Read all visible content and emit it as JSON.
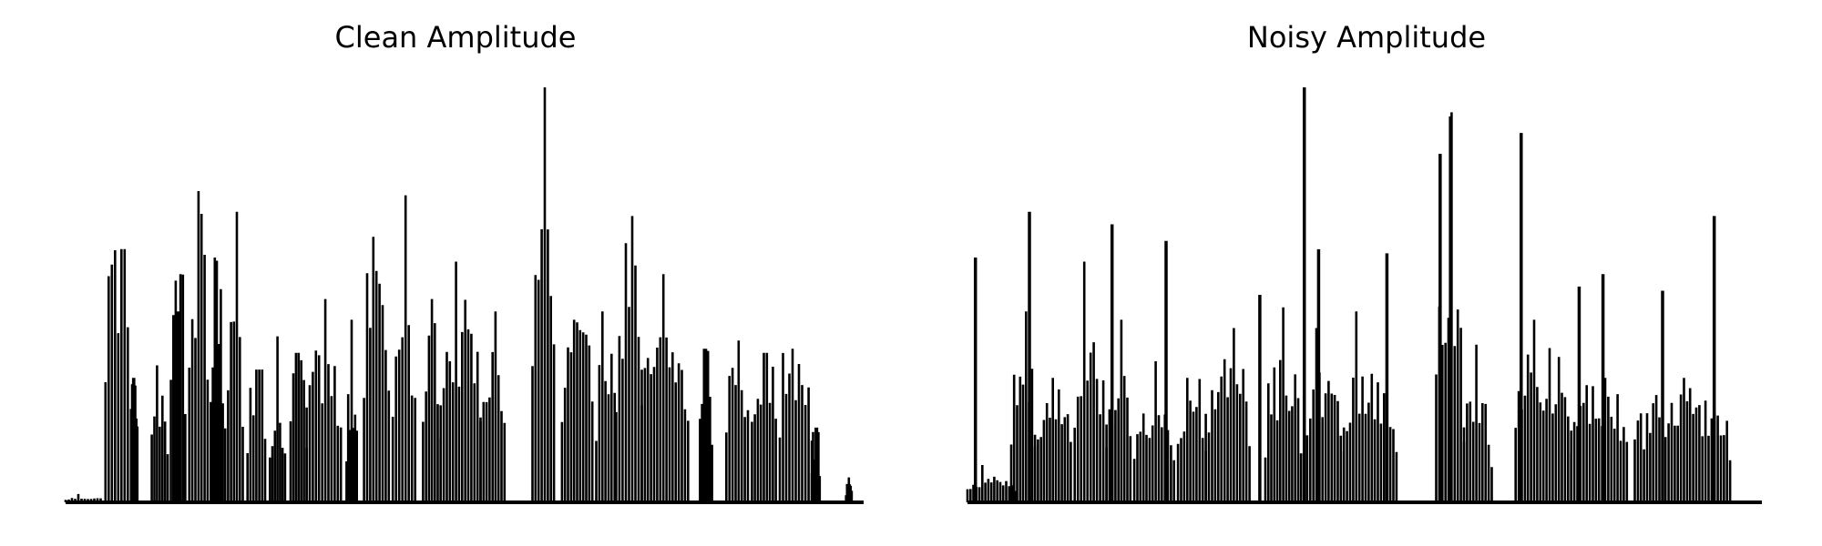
{
  "chart_data": [
    {
      "type": "line",
      "title": "Clean Amplitude",
      "xlabel": "",
      "ylabel": "",
      "axes": "off",
      "grid": false,
      "color": "#000000",
      "ylim": [
        0,
        1.0
      ],
      "segments": [
        {
          "start": 0.0,
          "end": 0.048,
          "level": 0.01,
          "peak": 0.02
        },
        {
          "start": 0.05,
          "end": 0.082,
          "level": 0.55,
          "peak": 0.61
        },
        {
          "start": 0.082,
          "end": 0.09,
          "level": 0.28,
          "peak": 0.3
        },
        {
          "start": 0.108,
          "end": 0.128,
          "level": 0.24,
          "peak": 0.33
        },
        {
          "start": 0.132,
          "end": 0.15,
          "level": 0.5,
          "peak": 0.55
        },
        {
          "start": 0.155,
          "end": 0.178,
          "level": 0.55,
          "peak": 0.75
        },
        {
          "start": 0.182,
          "end": 0.197,
          "level": 0.45,
          "peak": 0.59
        },
        {
          "start": 0.2,
          "end": 0.222,
          "level": 0.42,
          "peak": 0.7
        },
        {
          "start": 0.228,
          "end": 0.25,
          "level": 0.3,
          "peak": 0.32
        },
        {
          "start": 0.256,
          "end": 0.275,
          "level": 0.2,
          "peak": 0.4
        },
        {
          "start": 0.282,
          "end": 0.302,
          "level": 0.32,
          "peak": 0.36
        },
        {
          "start": 0.302,
          "end": 0.345,
          "level": 0.32,
          "peak": 0.49
        },
        {
          "start": 0.352,
          "end": 0.365,
          "level": 0.25,
          "peak": 0.44
        },
        {
          "start": 0.374,
          "end": 0.405,
          "level": 0.5,
          "peak": 0.64
        },
        {
          "start": 0.41,
          "end": 0.438,
          "level": 0.36,
          "peak": 0.74
        },
        {
          "start": 0.448,
          "end": 0.47,
          "level": 0.35,
          "peak": 0.49
        },
        {
          "start": 0.47,
          "end": 0.52,
          "level": 0.38,
          "peak": 0.58
        },
        {
          "start": 0.52,
          "end": 0.55,
          "level": 0.3,
          "peak": 0.46
        },
        {
          "start": 0.585,
          "end": 0.612,
          "level": 0.6,
          "peak": 1.0
        },
        {
          "start": 0.622,
          "end": 0.66,
          "level": 0.35,
          "peak": 0.44
        },
        {
          "start": 0.665,
          "end": 0.688,
          "level": 0.38,
          "peak": 0.46
        },
        {
          "start": 0.69,
          "end": 0.722,
          "level": 0.5,
          "peak": 0.69
        },
        {
          "start": 0.722,
          "end": 0.78,
          "level": 0.34,
          "peak": 0.55
        },
        {
          "start": 0.795,
          "end": 0.81,
          "level": 0.32,
          "peak": 0.37
        },
        {
          "start": 0.828,
          "end": 0.855,
          "level": 0.32,
          "peak": 0.39
        },
        {
          "start": 0.86,
          "end": 0.89,
          "level": 0.32,
          "peak": 0.36
        },
        {
          "start": 0.895,
          "end": 0.935,
          "level": 0.35,
          "peak": 0.37
        },
        {
          "start": 0.935,
          "end": 0.945,
          "level": 0.15,
          "peak": 0.18
        },
        {
          "start": 0.978,
          "end": 0.985,
          "level": 0.04,
          "peak": 0.06
        }
      ]
    },
    {
      "type": "line",
      "title": "Noisy Amplitude",
      "xlabel": "",
      "ylabel": "",
      "axes": "off",
      "grid": false,
      "color": "#000000",
      "ylim": [
        0,
        1.0
      ],
      "segments": [
        {
          "start": 0.0,
          "end": 0.06,
          "level": 0.05,
          "peak": 0.09
        },
        {
          "start": 0.055,
          "end": 0.085,
          "level": 0.3,
          "peak": 0.46
        },
        {
          "start": 0.085,
          "end": 0.13,
          "level": 0.22,
          "peak": 0.3
        },
        {
          "start": 0.135,
          "end": 0.175,
          "level": 0.3,
          "peak": 0.58
        },
        {
          "start": 0.175,
          "end": 0.205,
          "level": 0.28,
          "peak": 0.44
        },
        {
          "start": 0.21,
          "end": 0.26,
          "level": 0.22,
          "peak": 0.34
        },
        {
          "start": 0.265,
          "end": 0.3,
          "level": 0.25,
          "peak": 0.3
        },
        {
          "start": 0.3,
          "end": 0.355,
          "level": 0.3,
          "peak": 0.42
        },
        {
          "start": 0.375,
          "end": 0.42,
          "level": 0.28,
          "peak": 0.47
        },
        {
          "start": 0.42,
          "end": 0.47,
          "level": 0.25,
          "peak": 0.42
        },
        {
          "start": 0.47,
          "end": 0.54,
          "level": 0.25,
          "peak": 0.46
        },
        {
          "start": 0.59,
          "end": 0.625,
          "level": 0.45,
          "peak": 0.94
        },
        {
          "start": 0.625,
          "end": 0.66,
          "level": 0.22,
          "peak": 0.38
        },
        {
          "start": 0.69,
          "end": 0.76,
          "level": 0.3,
          "peak": 0.44
        },
        {
          "start": 0.76,
          "end": 0.83,
          "level": 0.25,
          "peak": 0.3
        },
        {
          "start": 0.84,
          "end": 0.96,
          "level": 0.22,
          "peak": 0.3
        }
      ],
      "spikes": [
        {
          "x": 0.01,
          "value": 0.59
        },
        {
          "x": 0.078,
          "value": 0.7
        },
        {
          "x": 0.182,
          "value": 0.67
        },
        {
          "x": 0.25,
          "value": 0.63
        },
        {
          "x": 0.368,
          "value": 0.5
        },
        {
          "x": 0.424,
          "value": 1.0
        },
        {
          "x": 0.442,
          "value": 0.61
        },
        {
          "x": 0.528,
          "value": 0.6
        },
        {
          "x": 0.595,
          "value": 0.84
        },
        {
          "x": 0.608,
          "value": 0.93
        },
        {
          "x": 0.697,
          "value": 0.89
        },
        {
          "x": 0.77,
          "value": 0.52
        },
        {
          "x": 0.8,
          "value": 0.55
        },
        {
          "x": 0.875,
          "value": 0.51
        },
        {
          "x": 0.94,
          "value": 0.69
        }
      ]
    }
  ]
}
